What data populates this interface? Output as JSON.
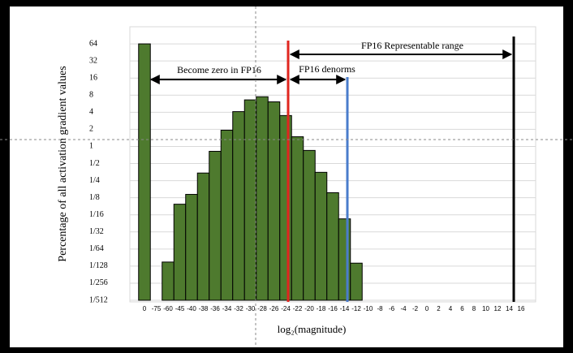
{
  "chart_data": {
    "type": "bar",
    "y_label": "Percentage of all activation gradient values",
    "x_label": "log₂(magnitude)",
    "categories": [
      "0",
      "-75",
      "-60",
      "-45",
      "-40",
      "-38",
      "-36",
      "-34",
      "-32",
      "-30",
      "-28",
      "-26",
      "-24",
      "-22",
      "-20",
      "-18",
      "-16",
      "-14",
      "-12",
      "-10",
      "-8",
      "-6",
      "-4",
      "-2",
      "0",
      "2",
      "4",
      "6",
      "8",
      "10",
      "12",
      "14",
      "16"
    ],
    "values": [
      64,
      null,
      0.0092,
      0.096,
      0.143,
      0.34,
      0.82,
      1.93,
      4.1,
      6.6,
      7.5,
      6.1,
      3.5,
      1.48,
      0.85,
      0.35,
      0.153,
      0.053,
      0.0088,
      null,
      null,
      null,
      null,
      null,
      null,
      null,
      null,
      null,
      null,
      null,
      null,
      null,
      null
    ],
    "color": "#4e7a2e",
    "log_y": true,
    "grid": true,
    "ylim": [
      0.001953125,
      128
    ],
    "yticks": [
      64,
      32,
      16,
      8,
      4,
      2,
      1,
      {
        "value": 0.5,
        "label": "1/2"
      },
      {
        "value": 0.25,
        "label": "1/4"
      },
      {
        "value": 0.125,
        "label": "1/8"
      },
      {
        "value": 0.0625,
        "label": "1/16"
      },
      {
        "value": 0.03125,
        "label": "1/32"
      },
      {
        "value": 0.015625,
        "label": "1/64"
      },
      {
        "value": 0.0078125,
        "label": "1/128"
      },
      {
        "value": 0.00390625,
        "label": "1/256"
      },
      {
        "value": 0.001953125,
        "label": "1/512"
      }
    ],
    "annotations": [
      "Become zero in FP16",
      "FP16 denorms",
      "FP16 Representable range"
    ]
  }
}
